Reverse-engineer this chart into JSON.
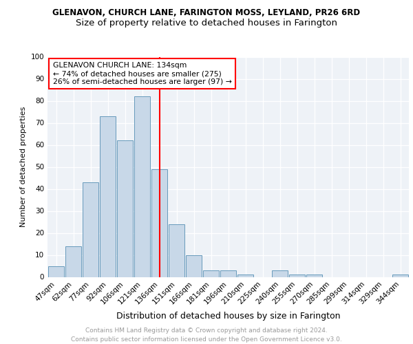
{
  "title": "GLENAVON, CHURCH LANE, FARINGTON MOSS, LEYLAND, PR26 6RD",
  "subtitle": "Size of property relative to detached houses in Farington",
  "xlabel": "Distribution of detached houses by size in Farington",
  "ylabel": "Number of detached properties",
  "bar_labels": [
    "47sqm",
    "62sqm",
    "77sqm",
    "92sqm",
    "106sqm",
    "121sqm",
    "136sqm",
    "151sqm",
    "166sqm",
    "181sqm",
    "196sqm",
    "210sqm",
    "225sqm",
    "240sqm",
    "255sqm",
    "270sqm",
    "285sqm",
    "299sqm",
    "314sqm",
    "329sqm",
    "344sqm"
  ],
  "bar_values": [
    5,
    14,
    43,
    73,
    62,
    82,
    49,
    24,
    10,
    3,
    3,
    1,
    0,
    3,
    1,
    1,
    0,
    0,
    0,
    0,
    1
  ],
  "bar_color": "#c8d8e8",
  "bar_edge_color": "#6699bb",
  "vline_x": 6.0,
  "vline_color": "red",
  "annotation_title": "GLENAVON CHURCH LANE: 134sqm",
  "annotation_line1": "← 74% of detached houses are smaller (275)",
  "annotation_line2": "26% of semi-detached houses are larger (97) →",
  "annotation_box_color": "red",
  "ylim": [
    0,
    100
  ],
  "yticks": [
    0,
    10,
    20,
    30,
    40,
    50,
    60,
    70,
    80,
    90,
    100
  ],
  "bg_color": "#eef2f7",
  "footer_line1": "Contains HM Land Registry data © Crown copyright and database right 2024.",
  "footer_line2": "Contains public sector information licensed under the Open Government Licence v3.0.",
  "title_fontsize": 8.5,
  "subtitle_fontsize": 9.5,
  "xlabel_fontsize": 9,
  "ylabel_fontsize": 8,
  "tick_fontsize": 7.5,
  "footer_fontsize": 6.5
}
